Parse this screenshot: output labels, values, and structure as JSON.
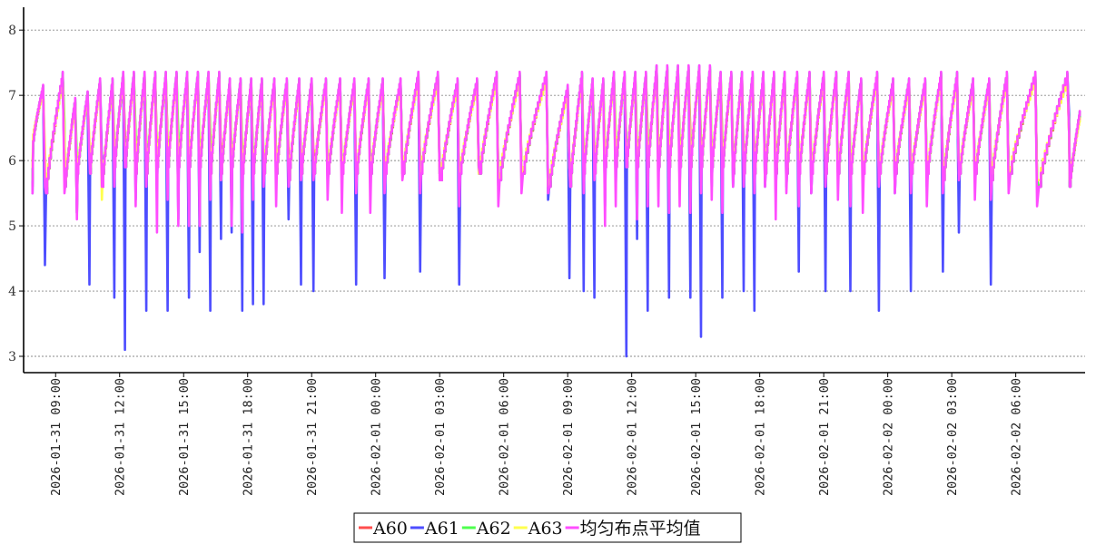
{
  "chart_data": {
    "type": "line",
    "ylim": [
      2.75,
      8.35
    ],
    "y_ticks": [
      3,
      4,
      5,
      6,
      7,
      8
    ],
    "x_range": [
      "2026-01-31 07:30",
      "2026-02-02 09:15"
    ],
    "x_ticks": [
      "2026-01-31 09:00",
      "2026-01-31 12:00",
      "2026-01-31 15:00",
      "2026-01-31 18:00",
      "2026-01-31 21:00",
      "2026-02-01 00:00",
      "2026-02-01 03:00",
      "2026-02-01 06:00",
      "2026-02-01 09:00",
      "2026-02-01 12:00",
      "2026-02-01 15:00",
      "2026-02-01 18:00",
      "2026-02-01 21:00",
      "2026-02-02 00:00",
      "2026-02-02 03:00",
      "2026-02-02 06:00"
    ],
    "grid": "horizontal-dotted",
    "legend_position": "bottom-center",
    "series": [
      {
        "name": "A60",
        "color": "#ff4d4d"
      },
      {
        "name": "A61",
        "color": "#4d4dff"
      },
      {
        "name": "A62",
        "color": "#4dff4d"
      },
      {
        "name": "A63",
        "color": "#ffff4d"
      },
      {
        "name": "均匀布点平均值",
        "color": "#ff4dff"
      }
    ],
    "cycles": [
      {
        "start": "2026-01-31 07:55",
        "peak": "2026-01-31 08:25",
        "min": 6.3,
        "max": 7.1,
        "drops": [
          5.6,
          5.5,
          5.7,
          5.9,
          5.5
        ]
      },
      {
        "start": "2026-01-31 08:30",
        "peak": "2026-01-31 09:20",
        "min": 5.5,
        "max": 7.3,
        "drops": [
          5.7,
          4.4,
          5.9,
          6.2,
          5.6
        ]
      },
      {
        "start": "2026-01-31 09:25",
        "peak": "2026-01-31 09:55",
        "min": 5.6,
        "max": 6.9,
        "drops": [
          5.9,
          5.8,
          6.6,
          6.4,
          5.5
        ]
      },
      {
        "start": "2026-01-31 10:00",
        "peak": "2026-01-31 10:30",
        "min": 5.8,
        "max": 7.0,
        "drops": [
          5.2,
          5.2,
          6.0,
          5.6,
          5.1
        ]
      },
      {
        "start": "2026-01-31 10:35",
        "peak": "2026-01-31 11:05",
        "min": 5.8,
        "max": 7.2,
        "drops": [
          6.0,
          4.1,
          6.1,
          6.3,
          6.0
        ]
      },
      {
        "start": "2026-01-31 11:10",
        "peak": "2026-01-31 11:40",
        "min": 5.6,
        "max": 7.2,
        "drops": [
          5.8,
          6.0,
          5.6,
          5.4,
          5.6
        ]
      },
      {
        "start": "2026-01-31 11:45",
        "peak": "2026-01-31 12:10",
        "min": 5.9,
        "max": 7.3,
        "drops": [
          6.1,
          3.9,
          6.3,
          6.2,
          5.6
        ]
      },
      {
        "start": "2026-01-31 12:15",
        "peak": "2026-01-31 12:40",
        "min": 5.9,
        "max": 7.3,
        "drops": [
          6.4,
          3.1,
          6.2,
          6.0,
          5.9
        ]
      },
      {
        "start": "2026-01-31 12:45",
        "peak": "2026-01-31 13:10",
        "min": 5.8,
        "max": 7.3,
        "drops": [
          6.3,
          5.4,
          6.4,
          6.1,
          5.3
        ]
      },
      {
        "start": "2026-01-31 13:15",
        "peak": "2026-01-31 13:40",
        "min": 5.8,
        "max": 7.3,
        "drops": [
          6.2,
          3.7,
          6.3,
          6.0,
          5.6
        ]
      },
      {
        "start": "2026-01-31 13:45",
        "peak": "2026-01-31 14:10",
        "min": 5.9,
        "max": 7.3,
        "drops": [
          6.1,
          5.6,
          6.0,
          5.8,
          4.9
        ]
      },
      {
        "start": "2026-01-31 14:15",
        "peak": "2026-01-31 14:40",
        "min": 5.9,
        "max": 7.3,
        "drops": [
          6.3,
          3.7,
          6.2,
          6.1,
          5.4
        ]
      },
      {
        "start": "2026-01-31 14:45",
        "peak": "2026-01-31 15:10",
        "min": 5.9,
        "max": 7.3,
        "drops": [
          6.1,
          5.1,
          6.4,
          5.9,
          5.0
        ]
      },
      {
        "start": "2026-01-31 15:15",
        "peak": "2026-01-31 15:40",
        "min": 5.9,
        "max": 7.3,
        "drops": [
          6.0,
          3.9,
          6.2,
          6.0,
          5.0
        ]
      },
      {
        "start": "2026-01-31 15:45",
        "peak": "2026-01-31 16:10",
        "min": 5.9,
        "max": 7.3,
        "drops": [
          6.0,
          4.6,
          6.1,
          5.9,
          5.0
        ]
      },
      {
        "start": "2026-01-31 16:15",
        "peak": "2026-01-31 16:40",
        "min": 5.8,
        "max": 7.3,
        "drops": [
          6.4,
          3.7,
          6.3,
          6.0,
          5.4
        ]
      },
      {
        "start": "2026-01-31 16:45",
        "peak": "2026-01-31 17:10",
        "min": 5.8,
        "max": 7.2,
        "drops": [
          6.1,
          4.8,
          5.8,
          5.7,
          5.7
        ]
      },
      {
        "start": "2026-01-31 17:15",
        "peak": "2026-01-31 17:40",
        "min": 5.9,
        "max": 7.2,
        "drops": [
          5.9,
          4.9,
          6.0,
          5.8,
          5.0
        ]
      },
      {
        "start": "2026-01-31 17:45",
        "peak": "2026-01-31 18:10",
        "min": 5.8,
        "max": 7.2,
        "drops": [
          6.0,
          3.7,
          6.1,
          5.9,
          4.9
        ]
      },
      {
        "start": "2026-01-31 18:15",
        "peak": "2026-01-31 18:40",
        "min": 5.8,
        "max": 7.2,
        "drops": [
          6.0,
          3.8,
          6.0,
          5.8,
          5.4
        ]
      },
      {
        "start": "2026-01-31 18:45",
        "peak": "2026-01-31 19:15",
        "min": 5.8,
        "max": 7.2,
        "drops": [
          5.9,
          3.8,
          6.0,
          5.8,
          5.6
        ]
      },
      {
        "start": "2026-01-31 19:20",
        "peak": "2026-01-31 19:50",
        "min": 5.8,
        "max": 7.2,
        "drops": [
          6.0,
          5.9,
          6.0,
          5.9,
          5.3
        ]
      },
      {
        "start": "2026-01-31 19:55",
        "peak": "2026-01-31 20:25",
        "min": 5.7,
        "max": 7.2,
        "drops": [
          6.1,
          5.1,
          5.8,
          5.8,
          5.6
        ]
      },
      {
        "start": "2026-01-31 20:30",
        "peak": "2026-01-31 21:00",
        "min": 5.8,
        "max": 7.2,
        "drops": [
          5.9,
          4.1,
          5.9,
          5.8,
          5.7
        ]
      },
      {
        "start": "2026-01-31 21:05",
        "peak": "2026-01-31 21:40",
        "min": 5.8,
        "max": 7.2,
        "drops": [
          6.1,
          4.0,
          5.9,
          5.8,
          5.7
        ]
      },
      {
        "start": "2026-01-31 21:45",
        "peak": "2026-01-31 22:20",
        "min": 5.8,
        "max": 7.2,
        "drops": [
          5.8,
          5.7,
          5.9,
          5.9,
          5.4
        ]
      },
      {
        "start": "2026-01-31 22:25",
        "peak": "2026-01-31 23:00",
        "min": 5.8,
        "max": 7.2,
        "drops": [
          5.8,
          5.7,
          5.8,
          5.8,
          5.2
        ]
      },
      {
        "start": "2026-01-31 23:05",
        "peak": "2026-01-31 23:40",
        "min": 5.8,
        "max": 7.2,
        "drops": [
          5.7,
          4.1,
          5.8,
          5.8,
          5.5
        ]
      },
      {
        "start": "2026-01-31 23:45",
        "peak": "2026-02-01 00:20",
        "min": 5.8,
        "max": 7.2,
        "drops": [
          5.8,
          5.8,
          5.8,
          5.7,
          5.2
        ]
      },
      {
        "start": "2026-02-01 00:25",
        "peak": "2026-02-01 01:10",
        "min": 5.8,
        "max": 7.2,
        "drops": [
          5.9,
          4.2,
          5.9,
          5.8,
          5.5
        ]
      },
      {
        "start": "2026-02-01 01:15",
        "peak": "2026-02-01 02:00",
        "min": 5.8,
        "max": 7.3,
        "drops": [
          5.9,
          5.8,
          5.9,
          5.8,
          5.7
        ]
      },
      {
        "start": "2026-02-01 02:05",
        "peak": "2026-02-01 02:55",
        "min": 5.8,
        "max": 7.3,
        "drops": [
          5.9,
          4.3,
          5.9,
          5.8,
          5.5
        ]
      },
      {
        "start": "2026-02-01 03:00",
        "peak": "2026-02-01 03:50",
        "min": 5.7,
        "max": 7.2,
        "drops": [
          5.9,
          5.8,
          5.8,
          5.8,
          5.7
        ]
      },
      {
        "start": "2026-02-01 03:55",
        "peak": "2026-02-01 04:45",
        "min": 5.8,
        "max": 7.2,
        "drops": [
          5.6,
          4.1,
          5.8,
          5.8,
          5.3
        ]
      },
      {
        "start": "2026-02-01 04:50",
        "peak": "2026-02-01 05:40",
        "min": 5.8,
        "max": 7.3,
        "drops": [
          5.9,
          5.8,
          5.9,
          5.8,
          5.9
        ]
      },
      {
        "start": "2026-02-01 05:45",
        "peak": "2026-02-01 06:45",
        "min": 5.7,
        "max": 7.3,
        "drops": [
          5.8,
          5.6,
          5.7,
          5.7,
          5.3
        ]
      },
      {
        "start": "2026-02-01 06:50",
        "peak": "2026-02-01 08:00",
        "min": 5.8,
        "max": 7.3,
        "drops": [
          5.9,
          5.8,
          5.7,
          5.8,
          5.5
        ]
      },
      {
        "start": "2026-02-01 08:05",
        "peak": "2026-02-01 09:00",
        "min": 5.6,
        "max": 7.1,
        "drops": [
          5.6,
          5.4,
          5.6,
          5.6,
          5.5
        ]
      },
      {
        "start": "2026-02-01 09:05",
        "peak": "2026-02-01 09:40",
        "min": 5.6,
        "max": 7.3,
        "drops": [
          5.9,
          4.2,
          5.9,
          5.9,
          5.9
        ]
      },
      {
        "start": "2026-02-01 09:45",
        "peak": "2026-02-01 10:10",
        "min": 5.8,
        "max": 7.2,
        "drops": [
          6.0,
          4.0,
          6.1,
          6.0,
          5.5
        ]
      },
      {
        "start": "2026-02-01 10:15",
        "peak": "2026-02-01 10:40",
        "min": 5.8,
        "max": 7.2,
        "drops": [
          6.1,
          3.9,
          6.2,
          6.1,
          5.7
        ]
      },
      {
        "start": "2026-02-01 10:45",
        "peak": "2026-02-01 11:10",
        "min": 5.9,
        "max": 7.3,
        "drops": [
          6.0,
          5.3,
          6.1,
          6.0,
          5.0
        ]
      },
      {
        "start": "2026-02-01 11:15",
        "peak": "2026-02-01 11:40",
        "min": 5.9,
        "max": 7.3,
        "drops": [
          6.2,
          5.6,
          6.4,
          6.2,
          5.3
        ]
      },
      {
        "start": "2026-02-01 11:45",
        "peak": "2026-02-01 12:10",
        "min": 5.9,
        "max": 7.3,
        "drops": [
          6.2,
          3.0,
          6.3,
          6.1,
          5.9
        ]
      },
      {
        "start": "2026-02-01 12:15",
        "peak": "2026-02-01 12:40",
        "min": 5.9,
        "max": 7.3,
        "drops": [
          6.1,
          4.8,
          6.2,
          6.0,
          5.1
        ]
      },
      {
        "start": "2026-02-01 12:45",
        "peak": "2026-02-01 13:10",
        "min": 5.9,
        "max": 7.4,
        "drops": [
          6.4,
          3.7,
          6.3,
          6.1,
          5.3
        ]
      },
      {
        "start": "2026-02-01 13:15",
        "peak": "2026-02-01 13:40",
        "min": 5.9,
        "max": 7.4,
        "drops": [
          6.2,
          5.8,
          6.1,
          6.0,
          5.3
        ]
      },
      {
        "start": "2026-02-01 13:45",
        "peak": "2026-02-01 14:10",
        "min": 5.9,
        "max": 7.4,
        "drops": [
          6.2,
          3.9,
          6.3,
          6.2,
          5.2
        ]
      },
      {
        "start": "2026-02-01 14:15",
        "peak": "2026-02-01 14:40",
        "min": 5.9,
        "max": 7.4,
        "drops": [
          6.3,
          5.6,
          6.2,
          6.0,
          5.3
        ]
      },
      {
        "start": "2026-02-01 14:45",
        "peak": "2026-02-01 15:10",
        "min": 5.9,
        "max": 7.4,
        "drops": [
          6.4,
          3.9,
          6.2,
          6.1,
          5.2
        ]
      },
      {
        "start": "2026-02-01 15:15",
        "peak": "2026-02-01 15:40",
        "min": 5.9,
        "max": 7.4,
        "drops": [
          6.1,
          3.3,
          6.2,
          6.0,
          5.5
        ]
      },
      {
        "start": "2026-02-01 15:45",
        "peak": "2026-02-01 16:10",
        "min": 5.9,
        "max": 7.3,
        "drops": [
          6.0,
          5.6,
          6.1,
          5.9,
          5.4
        ]
      },
      {
        "start": "2026-02-01 16:15",
        "peak": "2026-02-01 16:40",
        "min": 5.9,
        "max": 7.3,
        "drops": [
          6.3,
          3.9,
          6.2,
          6.0,
          5.2
        ]
      },
      {
        "start": "2026-02-01 16:45",
        "peak": "2026-02-01 17:10",
        "min": 5.8,
        "max": 7.3,
        "drops": [
          6.0,
          5.6,
          6.0,
          5.9,
          5.6
        ]
      },
      {
        "start": "2026-02-01 17:15",
        "peak": "2026-02-01 17:40",
        "min": 5.8,
        "max": 7.3,
        "drops": [
          6.1,
          4.0,
          6.0,
          5.9,
          5.6
        ]
      },
      {
        "start": "2026-02-01 17:45",
        "peak": "2026-02-01 18:10",
        "min": 5.8,
        "max": 7.3,
        "drops": [
          6.0,
          3.7,
          6.0,
          5.9,
          5.5
        ]
      },
      {
        "start": "2026-02-01 18:15",
        "peak": "2026-02-01 18:40",
        "min": 5.8,
        "max": 7.3,
        "drops": [
          6.0,
          5.6,
          6.0,
          5.9,
          5.6
        ]
      },
      {
        "start": "2026-02-01 18:45",
        "peak": "2026-02-01 19:10",
        "min": 5.8,
        "max": 7.3,
        "drops": [
          6.1,
          5.5,
          6.0,
          5.9,
          5.1
        ]
      },
      {
        "start": "2026-02-01 19:15",
        "peak": "2026-02-01 19:45",
        "min": 5.8,
        "max": 7.3,
        "drops": [
          6.0,
          5.6,
          6.0,
          5.9,
          5.5
        ]
      },
      {
        "start": "2026-02-01 19:50",
        "peak": "2026-02-01 20:20",
        "min": 5.8,
        "max": 7.3,
        "drops": [
          6.1,
          4.3,
          6.0,
          5.9,
          5.3
        ]
      },
      {
        "start": "2026-02-01 20:25",
        "peak": "2026-02-01 21:00",
        "min": 5.8,
        "max": 7.3,
        "drops": [
          5.9,
          5.5,
          5.9,
          5.9,
          5.5
        ]
      },
      {
        "start": "2026-02-01 21:05",
        "peak": "2026-02-01 21:35",
        "min": 5.8,
        "max": 7.3,
        "drops": [
          5.9,
          4.0,
          5.9,
          5.8,
          5.6
        ]
      },
      {
        "start": "2026-02-01 21:40",
        "peak": "2026-02-01 22:10",
        "min": 5.8,
        "max": 7.3,
        "drops": [
          5.9,
          5.8,
          5.9,
          5.8,
          5.4
        ]
      },
      {
        "start": "2026-02-01 22:15",
        "peak": "2026-02-01 22:45",
        "min": 5.8,
        "max": 7.2,
        "drops": [
          5.9,
          4.0,
          5.9,
          5.8,
          5.3
        ]
      },
      {
        "start": "2026-02-01 22:50",
        "peak": "2026-02-01 23:30",
        "min": 5.8,
        "max": 7.3,
        "drops": [
          5.8,
          5.8,
          5.8,
          5.8,
          5.2
        ]
      },
      {
        "start": "2026-02-01 23:35",
        "peak": "2026-02-02 00:15",
        "min": 5.8,
        "max": 7.2,
        "drops": [
          5.8,
          3.7,
          5.8,
          5.8,
          5.6
        ]
      },
      {
        "start": "2026-02-02 00:20",
        "peak": "2026-02-02 01:00",
        "min": 5.8,
        "max": 7.2,
        "drops": [
          5.8,
          5.5,
          5.8,
          5.7,
          5.5
        ]
      },
      {
        "start": "2026-02-02 01:05",
        "peak": "2026-02-02 01:45",
        "min": 5.8,
        "max": 7.2,
        "drops": [
          5.9,
          4.0,
          5.9,
          5.8,
          5.5
        ]
      },
      {
        "start": "2026-02-02 01:50",
        "peak": "2026-02-02 02:30",
        "min": 5.8,
        "max": 7.3,
        "drops": [
          5.8,
          5.6,
          5.8,
          5.7,
          5.3
        ]
      },
      {
        "start": "2026-02-02 02:35",
        "peak": "2026-02-02 03:15",
        "min": 5.7,
        "max": 7.3,
        "drops": [
          5.8,
          4.3,
          5.8,
          5.7,
          5.5
        ]
      },
      {
        "start": "2026-02-02 03:20",
        "peak": "2026-02-02 04:00",
        "min": 5.8,
        "max": 7.2,
        "drops": [
          5.8,
          4.9,
          5.9,
          5.8,
          5.7
        ]
      },
      {
        "start": "2026-02-02 04:05",
        "peak": "2026-02-02 04:45",
        "min": 5.8,
        "max": 7.2,
        "drops": [
          5.8,
          5.7,
          5.7,
          5.7,
          5.4
        ]
      },
      {
        "start": "2026-02-02 04:50",
        "peak": "2026-02-02 05:35",
        "min": 5.7,
        "max": 7.3,
        "drops": [
          5.9,
          4.1,
          5.9,
          5.8,
          5.4
        ]
      },
      {
        "start": "2026-02-02 05:40",
        "peak": "2026-02-02 06:55",
        "min": 5.8,
        "max": 7.3,
        "drops": [
          5.9,
          5.8,
          5.8,
          5.8,
          5.5
        ]
      },
      {
        "start": "2026-02-02 07:00",
        "peak": "2026-02-02 08:25",
        "min": 5.6,
        "max": 7.3,
        "drops": [
          5.7,
          5.6,
          5.7,
          5.7,
          5.3
        ]
      },
      {
        "start": "2026-02-02 08:30",
        "peak": "2026-02-02 09:00",
        "min": 5.6,
        "max": 6.7,
        "drops": [
          6.4,
          6.7,
          6.5,
          6.4,
          6.4
        ]
      }
    ]
  }
}
